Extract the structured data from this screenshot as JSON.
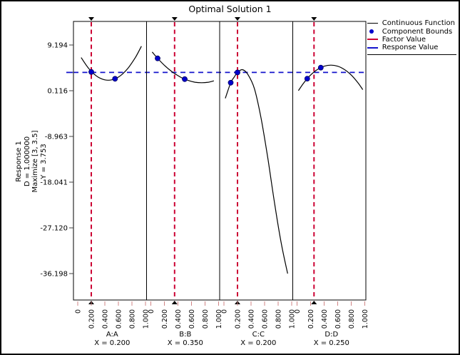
{
  "window": {
    "background": "#ffffff",
    "frame_color": "#000000"
  },
  "chart_data": {
    "type": "line",
    "title": "Optimal Solution 1",
    "y_axis_label_lines": [
      "Response 1",
      "D = 1.000000",
      "Maximize [3, 3.5]",
      "Y = 3.753"
    ],
    "y_tick_labels": [
      "9.194",
      "0.116",
      "-8.963",
      "-18.041",
      "-27.120",
      "-36.198"
    ],
    "y_tick_values": [
      9.194,
      0.116,
      -8.963,
      -18.041,
      -27.12,
      -36.198
    ],
    "x_tick_labels": [
      "0",
      "0.200",
      "0.400",
      "0.600",
      "0.800",
      "1.000"
    ],
    "x_tick_values": [
      0,
      0.2,
      0.4,
      0.6,
      0.8,
      1.0
    ],
    "response_value": 3.753,
    "desirability": "D = 1.000000",
    "goal": "Maximize [3, 3.5]",
    "ylim": [
      -41.4,
      13.9
    ],
    "xlim": [
      0,
      1
    ],
    "legend_position": "top-right",
    "grid": false,
    "panels": [
      {
        "name": "A:A",
        "factor_label": "X = 0.200",
        "factor_value": 0.2,
        "bounds": [
          [
            0.2,
            3.85
          ],
          [
            0.55,
            2.48
          ]
        ],
        "curve": [
          [
            0.05,
            6.7
          ],
          [
            0.15,
            4.73
          ],
          [
            0.25,
            3.32
          ],
          [
            0.35,
            2.48
          ],
          [
            0.45,
            2.2
          ],
          [
            0.55,
            2.48
          ],
          [
            0.65,
            3.32
          ],
          [
            0.75,
            4.73
          ],
          [
            0.85,
            6.7
          ],
          [
            0.94,
            8.95
          ]
        ]
      },
      {
        "name": "B:B",
        "factor_label": "X = 0.350",
        "factor_value": 0.35,
        "bounds": [
          [
            0.1,
            6.54
          ],
          [
            0.5,
            2.42
          ]
        ],
        "curve": [
          [
            0.02,
            7.8
          ],
          [
            0.1,
            6.54
          ],
          [
            0.2,
            5.16
          ],
          [
            0.3,
            4.02
          ],
          [
            0.35,
            3.53
          ],
          [
            0.45,
            2.73
          ],
          [
            0.55,
            2.16
          ],
          [
            0.65,
            1.81
          ],
          [
            0.75,
            1.7
          ],
          [
            0.85,
            1.81
          ],
          [
            0.93,
            2.07
          ]
        ]
      },
      {
        "name": "C:C",
        "factor_label": "X = 0.200",
        "factor_value": 0.2,
        "bounds": [
          [
            0.1,
            1.7
          ],
          [
            0.2,
            3.75
          ]
        ],
        "curve": [
          [
            0.02,
            -1.4
          ],
          [
            0.1,
            1.7
          ],
          [
            0.15,
            2.8
          ],
          [
            0.2,
            3.75
          ],
          [
            0.27,
            4.3
          ],
          [
            0.35,
            3.4
          ],
          [
            0.45,
            0.5
          ],
          [
            0.55,
            -5.5
          ],
          [
            0.65,
            -13.5
          ],
          [
            0.75,
            -22.5
          ],
          [
            0.85,
            -30.5
          ],
          [
            0.94,
            -36.2
          ]
        ]
      },
      {
        "name": "D:D",
        "factor_label": "X = 0.250",
        "factor_value": 0.25,
        "bounds": [
          [
            0.15,
            2.51
          ],
          [
            0.35,
            4.7
          ]
        ],
        "curve": [
          [
            0.02,
            0.13
          ],
          [
            0.1,
            1.68
          ],
          [
            0.2,
            3.22
          ],
          [
            0.3,
            4.32
          ],
          [
            0.4,
            4.98
          ],
          [
            0.5,
            5.2
          ],
          [
            0.6,
            4.98
          ],
          [
            0.7,
            4.32
          ],
          [
            0.8,
            3.22
          ],
          [
            0.9,
            1.68
          ],
          [
            0.97,
            0.33
          ]
        ]
      }
    ]
  },
  "legend": {
    "items": [
      {
        "label": "Continuous Function",
        "marker": "line",
        "color": "#000000"
      },
      {
        "label": "Component Bounds",
        "marker": "dot",
        "color": "#0000cc"
      },
      {
        "label": "Factor Value",
        "marker": "line",
        "color": "#cc0033"
      },
      {
        "label": "Response Value",
        "marker": "line",
        "color": "#1414cc"
      }
    ]
  },
  "colors": {
    "curve": "#000000",
    "factor_line": "#cc0033",
    "response_line": "#1414cc",
    "bound_dot_fill": "#0000cc",
    "bound_dot_stroke": "#000066",
    "x_tick": "#d08484",
    "y_tick": "#404040",
    "panel_border": "#000000",
    "text": "#000000"
  }
}
